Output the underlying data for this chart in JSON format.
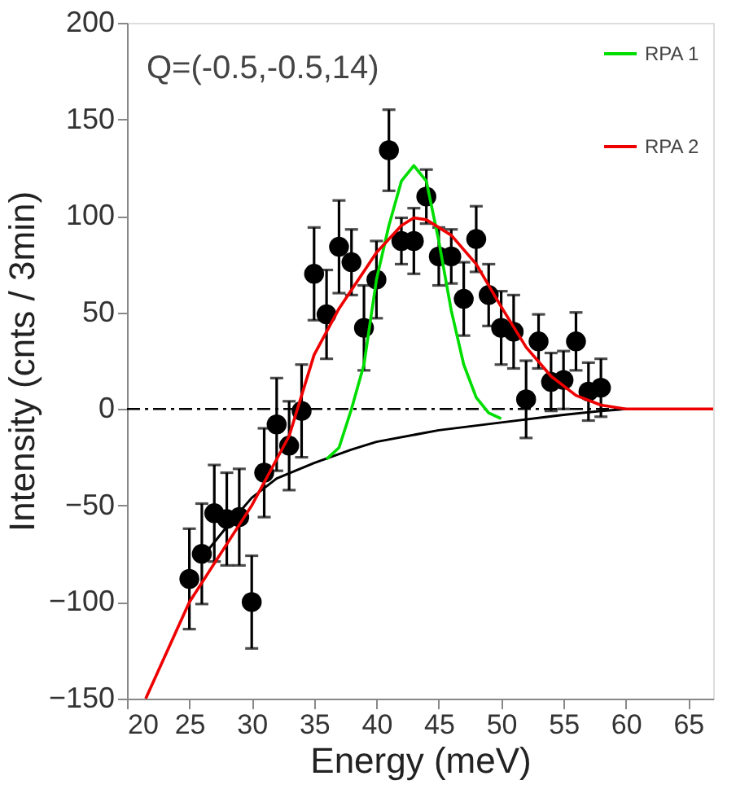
{
  "chart_data": {
    "type": "scatter",
    "xlabel": "Energy (meV)",
    "ylabel": "Intensity (cnts / 3min)",
    "annotations": [
      "Q=(-0.5,-0.5,14)"
    ],
    "x": [
      25,
      26,
      27,
      28,
      29,
      30,
      31,
      32,
      33,
      34,
      35,
      36,
      37,
      38,
      39,
      40,
      41,
      42,
      43,
      44,
      45,
      46,
      47,
      48,
      49,
      50,
      51,
      52,
      53,
      54,
      55,
      56,
      57,
      58
    ],
    "xlim": [
      20,
      67
    ],
    "xticks": [
      20,
      25,
      30,
      35,
      40,
      45,
      50,
      55,
      60,
      65
    ],
    "ylim": [
      -150,
      200
    ],
    "yticks": [
      -150,
      -100,
      -50,
      0,
      50,
      100,
      150,
      200
    ],
    "grid": false,
    "legend": "top right",
    "ref_lines": [
      {
        "axis": "y",
        "value": 0,
        "color": "#000000",
        "line_style": "dashed"
      }
    ],
    "series": [
      {
        "marker": "circle",
        "color": "#000000",
        "values": [
          -88,
          -75,
          -54,
          -57,
          -56,
          -100,
          -33,
          -8,
          -19,
          -1,
          70,
          49,
          84,
          76,
          42,
          67,
          134,
          87,
          87,
          110,
          79,
          79,
          57,
          88,
          59,
          42,
          40,
          5,
          35,
          14,
          15,
          35,
          9,
          11
        ],
        "errors": [
          26,
          26,
          25,
          24,
          25,
          24,
          23,
          24,
          23,
          24,
          24,
          23,
          24,
          17,
          22,
          20,
          21,
          12,
          17,
          14,
          15,
          14,
          19,
          17,
          16,
          19,
          19,
          20,
          14,
          15,
          15,
          15,
          15,
          15
        ]
      },
      {
        "type": "line",
        "name": "RPA 1",
        "color": "#00dd00",
        "x": [
          36,
          37,
          38,
          39,
          40,
          41,
          42,
          43,
          44,
          45,
          46,
          47,
          48,
          49,
          50
        ],
        "values": [
          -26,
          -20,
          0,
          23,
          67,
          95,
          118,
          126,
          118,
          87,
          51,
          23,
          6,
          -2,
          -5
        ]
      },
      {
        "type": "line",
        "name": "RPA 2",
        "color": "#ee0000",
        "x": [
          21.5,
          25,
          30,
          33,
          35,
          37,
          40,
          42,
          43,
          44,
          46,
          48,
          50,
          52,
          54,
          56,
          58,
          60,
          67
        ],
        "values": [
          -150,
          -100,
          -50,
          -14,
          28,
          52,
          81,
          95,
          99,
          98,
          90,
          75,
          53,
          32,
          17,
          7,
          2,
          0,
          0
        ]
      },
      {
        "type": "line",
        "color": "#000000",
        "x": [
          26,
          28,
          30,
          32,
          35,
          38,
          40,
          45,
          50,
          55,
          58,
          60
        ],
        "values": [
          -77,
          -61,
          -46,
          -36,
          -28,
          -21,
          -17,
          -11,
          -7,
          -3,
          -1,
          0
        ]
      }
    ]
  }
}
